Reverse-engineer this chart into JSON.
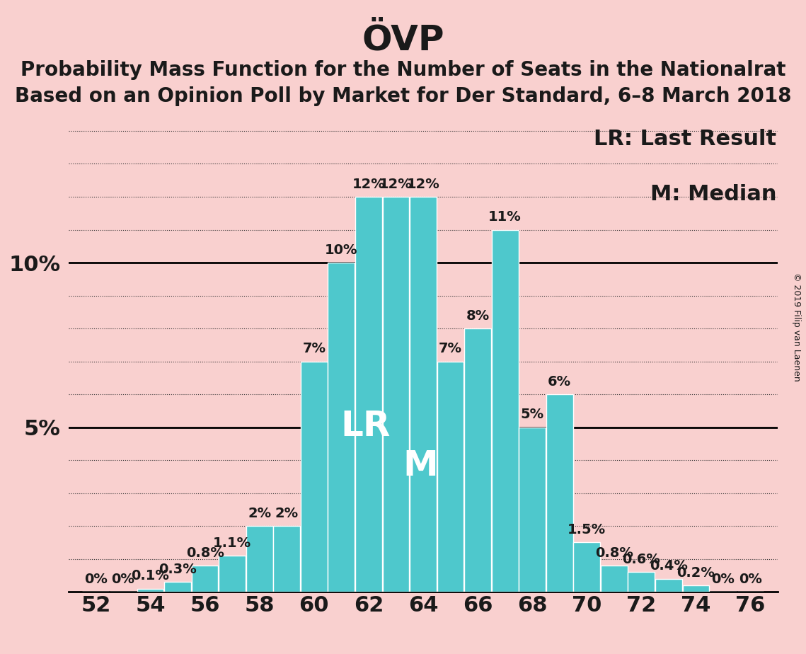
{
  "title": "ÖVP",
  "subtitle1": "Probability Mass Function for the Number of Seats in the Nationalrat",
  "subtitle2": "Based on an Opinion Poll by Market for Der Standard, 6–8 March 2018",
  "seats": [
    52,
    53,
    54,
    55,
    56,
    57,
    58,
    59,
    60,
    61,
    62,
    63,
    64,
    65,
    66,
    67,
    68,
    69,
    70,
    71,
    72,
    73,
    74,
    75,
    76
  ],
  "values": [
    0.0,
    0.0,
    0.1,
    0.3,
    0.8,
    1.1,
    2.0,
    2.0,
    7.0,
    10.0,
    12.0,
    12.0,
    12.0,
    7.0,
    8.0,
    11.0,
    5.0,
    6.0,
    1.5,
    0.8,
    0.6,
    0.4,
    0.2,
    0.0,
    0.0
  ],
  "bar_labels": [
    "0%",
    "0%",
    "0.1%",
    "0.3%",
    "0.8%",
    "1.1%",
    "2%",
    "2%",
    "7%",
    "10%",
    "12%",
    "12%",
    "12%",
    "7%",
    "8%",
    "11%",
    "5%",
    "6%",
    "1.5%",
    "0.8%",
    "0.6%",
    "0.4%",
    "0.2%",
    "0%",
    "0%"
  ],
  "bar_color": "#4ec8cc",
  "background_color": "#f9d0cf",
  "text_color": "#1a1a1a",
  "grid_color": "#333333",
  "bar_edge_color": "#ffffff",
  "lr_seat": 62,
  "median_seat": 64,
  "lr_label": "LR",
  "median_label": "M",
  "lr_legend": "LR: Last Result",
  "median_legend": "M: Median",
  "copyright": "© 2019 Filip van Laenen",
  "title_fontsize": 36,
  "subtitle_fontsize": 20,
  "axis_tick_fontsize": 22,
  "bar_label_fontsize": 14,
  "legend_fontsize": 22,
  "lr_label_fontsize": 36,
  "median_label_fontsize": 36,
  "ylim": [
    0,
    14.5
  ],
  "xlim": [
    51.0,
    77.0
  ],
  "xticks": [
    52,
    54,
    56,
    58,
    60,
    62,
    64,
    66,
    68,
    70,
    72,
    74,
    76
  ],
  "hline_5_color": "#000000",
  "hline_10_color": "#000000",
  "dotted_yticks": [
    1,
    2,
    3,
    4,
    6,
    7,
    8,
    9,
    11,
    12,
    13,
    14
  ],
  "solid_yticks": [
    5,
    10
  ]
}
